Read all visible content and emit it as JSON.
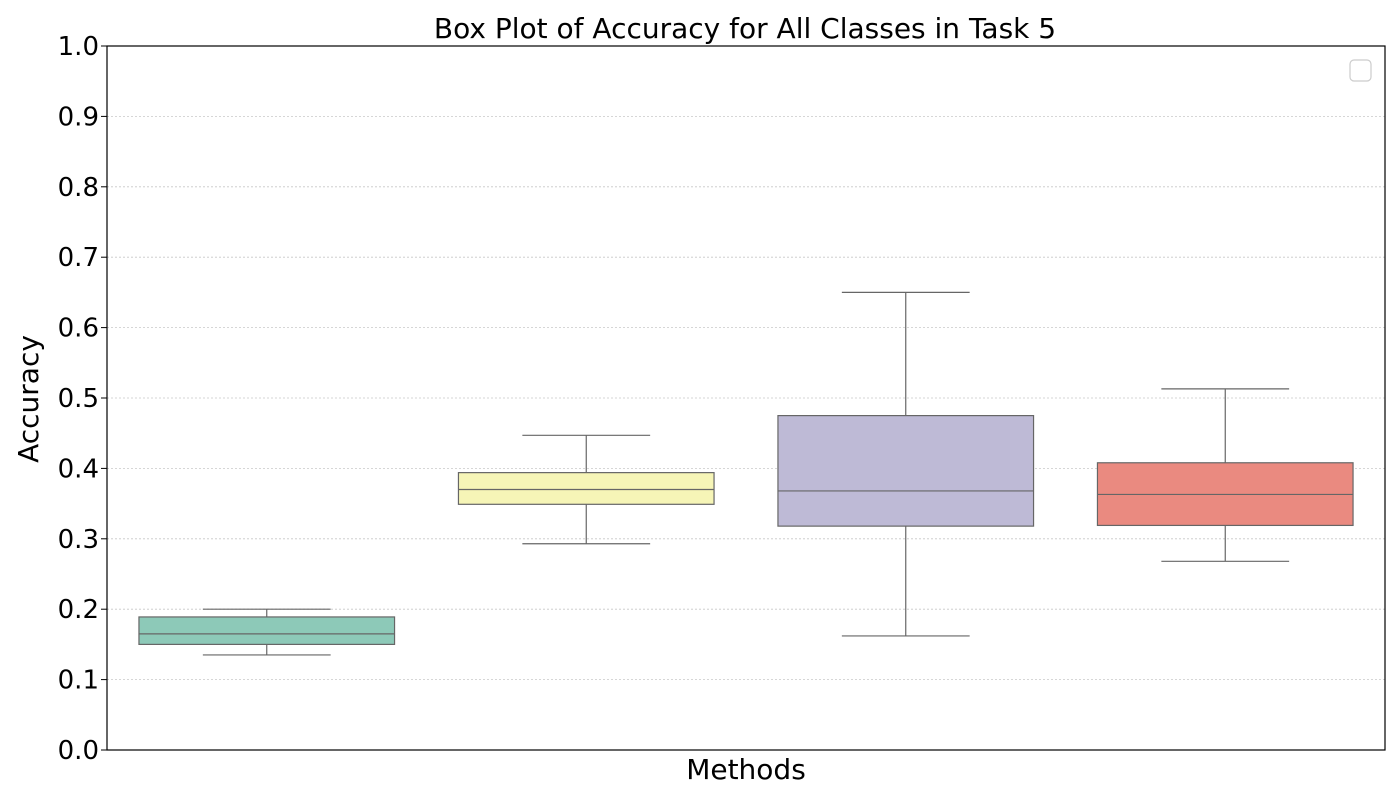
{
  "chart_data": {
    "type": "box",
    "title": "Box Plot of Accuracy for All Classes in Task 5",
    "xlabel": "Methods",
    "ylabel": "Accuracy",
    "ylim": [
      0.0,
      1.0
    ],
    "yticks": [
      "0.0",
      "0.1",
      "0.2",
      "0.3",
      "0.4",
      "0.5",
      "0.6",
      "0.7",
      "0.8",
      "0.9",
      "1.0"
    ],
    "grid": "horizontal dotted",
    "legend": {
      "placement": "top-right",
      "entries": []
    },
    "boxes": [
      {
        "whisker_low": 0.135,
        "q1": 0.15,
        "median": 0.165,
        "q3": 0.189,
        "whisker_high": 0.2,
        "color": "#8dc9b8"
      },
      {
        "whisker_low": 0.293,
        "q1": 0.349,
        "median": 0.37,
        "q3": 0.394,
        "whisker_high": 0.447,
        "color": "#f6f5b7"
      },
      {
        "whisker_low": 0.162,
        "q1": 0.318,
        "median": 0.368,
        "q3": 0.475,
        "whisker_high": 0.65,
        "color": "#bebad6"
      },
      {
        "whisker_low": 0.268,
        "q1": 0.319,
        "median": 0.363,
        "q3": 0.408,
        "whisker_high": 0.513,
        "color": "#ea8a80"
      }
    ]
  }
}
